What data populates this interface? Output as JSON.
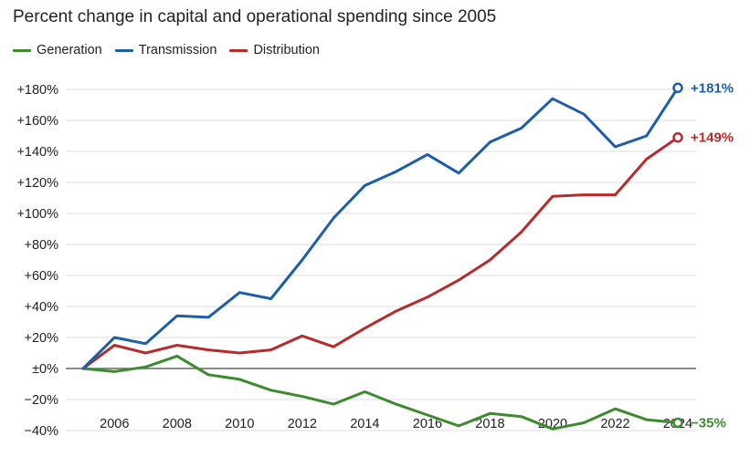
{
  "chart_data": {
    "type": "line",
    "title": "Percent change in capital and operational spending since 2005",
    "xlabel": "",
    "ylabel": "",
    "x": [
      2005,
      2006,
      2007,
      2008,
      2009,
      2010,
      2011,
      2012,
      2013,
      2014,
      2015,
      2016,
      2017,
      2018,
      2019,
      2020,
      2021,
      2022,
      2023,
      2024
    ],
    "xticks": [
      "2006",
      "2008",
      "2010",
      "2012",
      "2014",
      "2016",
      "2018",
      "2020",
      "2022",
      "2024"
    ],
    "xtick_values": [
      2006,
      2008,
      2010,
      2012,
      2014,
      2016,
      2018,
      2020,
      2022,
      2024
    ],
    "yticks": [
      "+180%",
      "+160%",
      "+140%",
      "+120%",
      "+100%",
      "+80%",
      "+60%",
      "+40%",
      "+20%",
      "±0%",
      "−20%",
      "−40%"
    ],
    "ytick_values": [
      180,
      160,
      140,
      120,
      100,
      80,
      60,
      40,
      20,
      0,
      -20,
      -40
    ],
    "ylim": [
      -40,
      180
    ],
    "xlim": [
      2005,
      2024
    ],
    "grid": true,
    "legend_position": "top-left",
    "series": [
      {
        "name": "Generation",
        "color": "#3d8b2f",
        "values": [
          0,
          -2,
          1,
          8,
          -4,
          -7,
          -14,
          -18,
          -23,
          -15,
          -23,
          -30,
          -37,
          -29,
          -31,
          -39,
          -35,
          -26,
          -33,
          -35
        ],
        "end_label": "−35%"
      },
      {
        "name": "Transmission",
        "color": "#1c5ea8",
        "values": [
          0,
          20,
          16,
          34,
          33,
          49,
          45,
          70,
          97,
          118,
          127,
          138,
          126,
          146,
          155,
          174,
          164,
          143,
          150,
          181
        ],
        "end_label": "+181%"
      },
      {
        "name": "Distribution",
        "color": "#b82b2b",
        "values": [
          0,
          15,
          10,
          15,
          12,
          10,
          12,
          21,
          14,
          26,
          37,
          46,
          57,
          70,
          88,
          111,
          112,
          112,
          135,
          149
        ],
        "end_label": "+149%"
      }
    ]
  }
}
